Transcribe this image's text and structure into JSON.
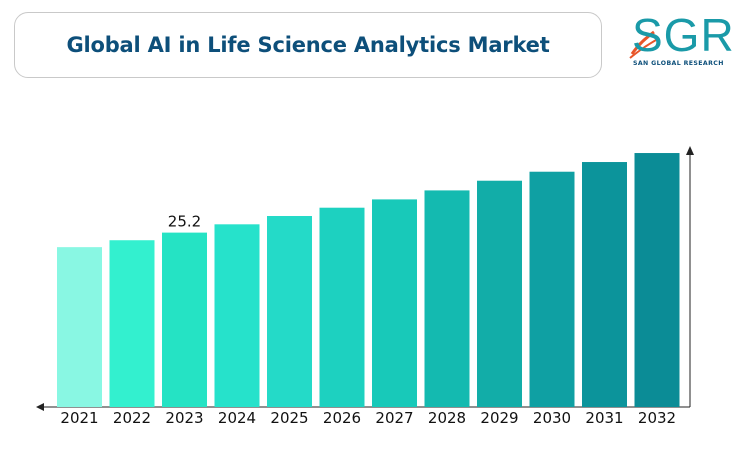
{
  "title": "Global AI in Life Science Analytics Market",
  "logo": {
    "letters": "SGR",
    "subtitle": "SAN GLOBAL RESEARCH"
  },
  "chart_data": {
    "type": "bar",
    "title": "Global AI in Life Science Analytics Market",
    "xlabel": "",
    "ylabel": "",
    "categories": [
      "2021",
      "2022",
      "2023",
      "2024",
      "2025",
      "2026",
      "2027",
      "2028",
      "2029",
      "2030",
      "2031",
      "2032"
    ],
    "values": [
      23.1,
      24.1,
      25.2,
      26.4,
      27.6,
      28.8,
      30.0,
      31.3,
      32.7,
      34.0,
      35.4,
      36.7
    ],
    "ylim": [
      0,
      50
    ],
    "grid": false,
    "legend": "none",
    "colors": [
      "#89f7e3",
      "#33f0cf",
      "#25e3c4",
      "#26e2cb",
      "#24dac8",
      "#1dd1c0",
      "#18c9b9",
      "#14bab0",
      "#12ada8",
      "#0fa0a3",
      "#0c949b",
      "#0b8c96"
    ],
    "data_labels": [
      {
        "category": "2023",
        "text": "25.2"
      }
    ]
  }
}
